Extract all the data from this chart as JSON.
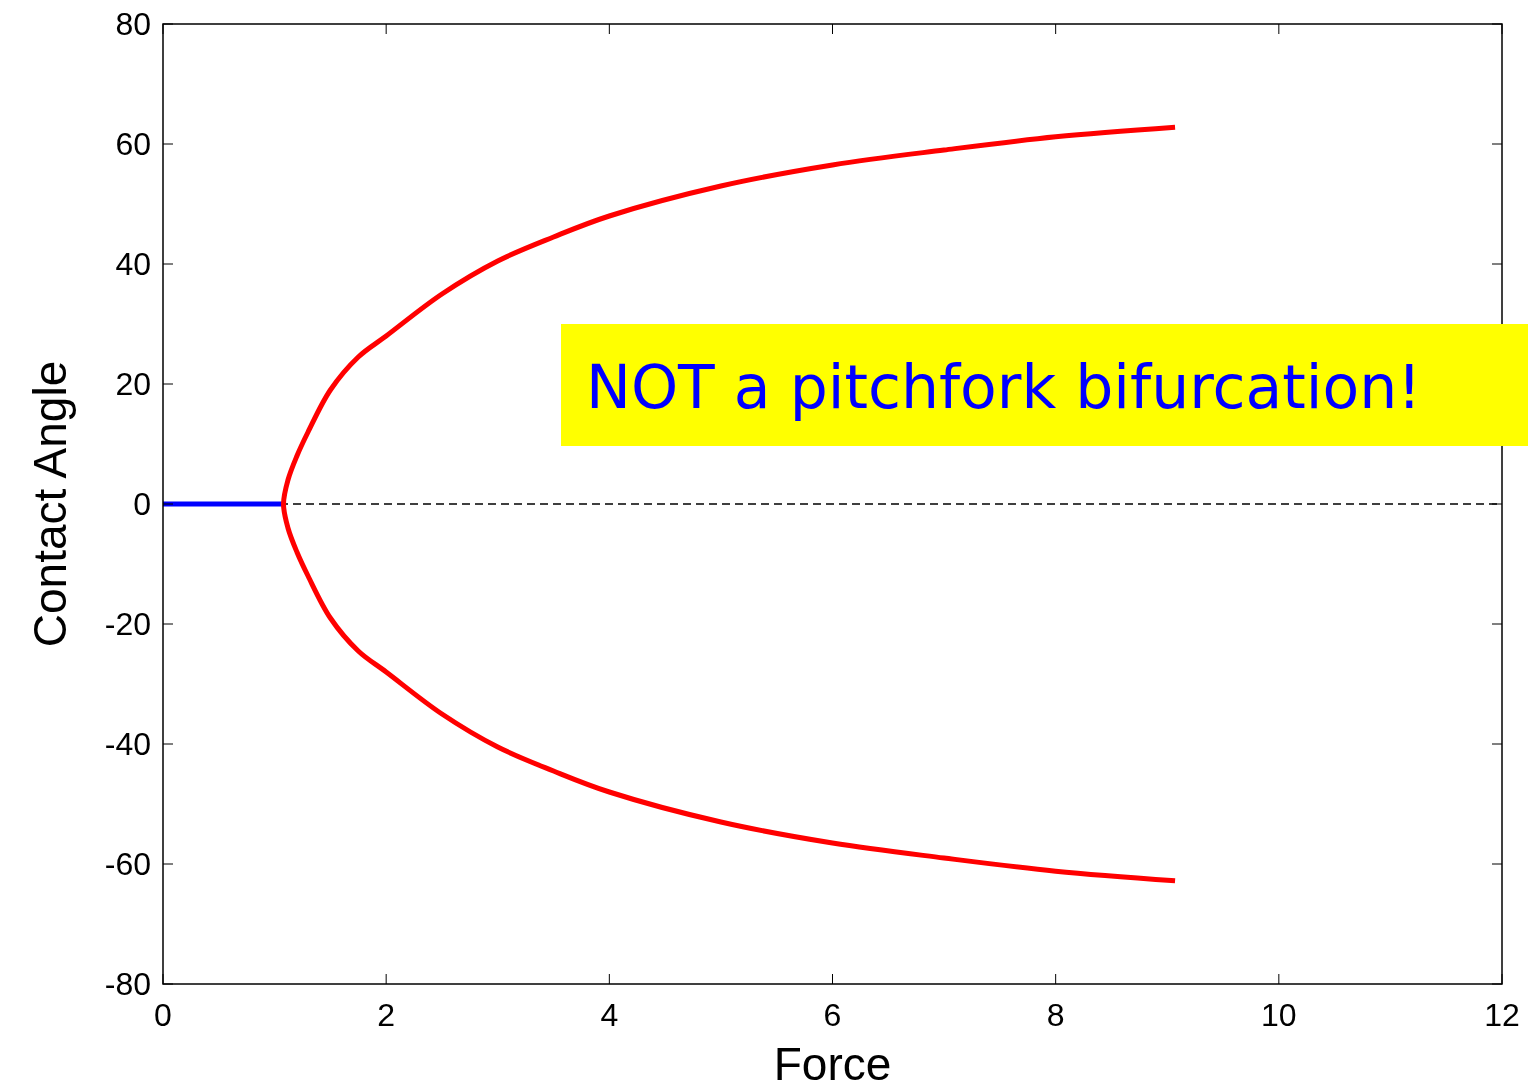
{
  "chart_data": {
    "type": "line",
    "xlabel": "Force",
    "ylabel": "Contact Angle",
    "xlim": [
      0,
      12
    ],
    "ylim": [
      -80,
      80
    ],
    "xticks": [
      0,
      2,
      4,
      6,
      8,
      10,
      12
    ],
    "yticks": [
      -80,
      -60,
      -40,
      -20,
      0,
      20,
      40,
      60,
      80
    ],
    "grid": false,
    "marker": "none",
    "line_style": "solid",
    "series": [
      {
        "color": "#0000ff",
        "x": [
          0,
          1.08
        ],
        "values": [
          0,
          0
        ]
      },
      {
        "color": "#ff0000",
        "x": [
          9.07,
          8,
          7,
          6,
          5,
          4,
          3.5,
          3,
          2.5,
          2,
          1.75,
          1.5,
          1.3,
          1.2,
          1.12,
          1.08,
          1.12,
          1.2,
          1.3,
          1.5,
          1.75,
          2,
          2.5,
          3,
          3.5,
          4,
          5,
          6,
          7,
          8,
          9.07
        ],
        "values": [
          62.8,
          61.2,
          59,
          56.5,
          53,
          48,
          44.5,
          40.5,
          35,
          28,
          24.5,
          19,
          12,
          8,
          4,
          0,
          -4,
          -8,
          -12,
          -19,
          -24.5,
          -28,
          -35,
          -40.5,
          -44.5,
          -48,
          -53,
          -56.5,
          -59,
          -61.2,
          -62.8
        ]
      }
    ],
    "ref_lines": [
      {
        "axis": "y",
        "value": 0,
        "color": "#000000",
        "line_style": "dashed"
      }
    ],
    "annotations": [
      "NOT a pitchfork bifurcation!"
    ]
  }
}
